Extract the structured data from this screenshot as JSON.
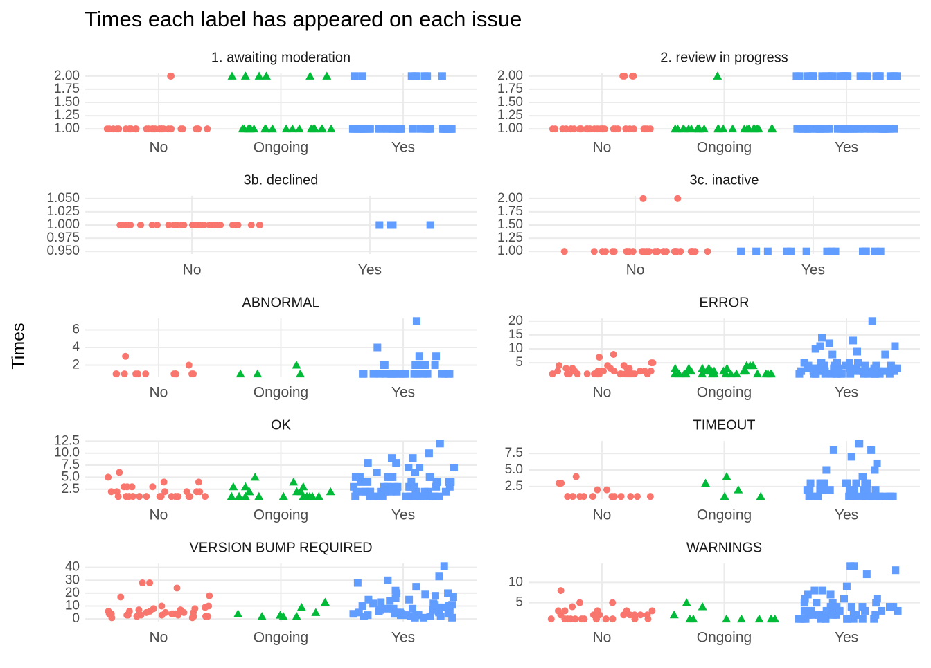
{
  "title": "Times each label has appeared on each issue",
  "y_label": "Times",
  "chart_data": [
    {
      "type": "scatter",
      "title": "1. awaiting moderation",
      "categories": [
        "No",
        "Ongoing",
        "Yes"
      ],
      "colors": [
        "#F8766D",
        "#00BA38",
        "#619CFF"
      ],
      "shapes": [
        "circle",
        "triangle",
        "square"
      ],
      "grid": true,
      "ylim": [
        0.95,
        2.05
      ],
      "yticks": [
        {
          "value": 1,
          "label": "1.00"
        },
        {
          "value": 1.25,
          "label": "1.25"
        },
        {
          "value": 1.5,
          "label": "1.50"
        },
        {
          "value": 1.75,
          "label": "1.75"
        },
        {
          "value": 2,
          "label": "2.00"
        }
      ],
      "values": [
        [
          1,
          1,
          1,
          1,
          1,
          1,
          1,
          1,
          1,
          1,
          1,
          1,
          1,
          1,
          1,
          1,
          1,
          1,
          1,
          1,
          1,
          1,
          1,
          1,
          1,
          1,
          1,
          1,
          1,
          1,
          2,
          2
        ],
        [
          1,
          1,
          1,
          1,
          1,
          1,
          1,
          1,
          1,
          1,
          1,
          1,
          1,
          1,
          1,
          1,
          1,
          1,
          1,
          1,
          2,
          2,
          2,
          2,
          2,
          2
        ],
        [
          1,
          1,
          1,
          1,
          1,
          1,
          1,
          1,
          1,
          1,
          1,
          1,
          1,
          1,
          1,
          1,
          1,
          1,
          1,
          1,
          1,
          1,
          1,
          1,
          1,
          1,
          1,
          1,
          1,
          1,
          1,
          1,
          1,
          1,
          1,
          1,
          1,
          1,
          1,
          1,
          2,
          2,
          2,
          2,
          2,
          2,
          2,
          2
        ]
      ]
    },
    {
      "type": "scatter",
      "title": "2. review in progress",
      "categories": [
        "No",
        "Ongoing",
        "Yes"
      ],
      "colors": [
        "#F8766D",
        "#00BA38",
        "#619CFF"
      ],
      "shapes": [
        "circle",
        "triangle",
        "square"
      ],
      "grid": true,
      "ylim": [
        0.95,
        2.05
      ],
      "yticks": [
        {
          "value": 1,
          "label": "1.00"
        },
        {
          "value": 1.25,
          "label": "1.25"
        },
        {
          "value": 1.5,
          "label": "1.50"
        },
        {
          "value": 1.75,
          "label": "1.75"
        },
        {
          "value": 2,
          "label": "2.00"
        }
      ],
      "values": [
        [
          1,
          1,
          1,
          1,
          1,
          1,
          1,
          1,
          1,
          1,
          1,
          1,
          1,
          1,
          1,
          1,
          1,
          1,
          1,
          1,
          1,
          1,
          1,
          1,
          1,
          1,
          1,
          1,
          1,
          1,
          2,
          2,
          2,
          2
        ],
        [
          1,
          1,
          1,
          1,
          1,
          1,
          1,
          1,
          1,
          1,
          1,
          1,
          1,
          1,
          1,
          1,
          1,
          1,
          1,
          1,
          1,
          1,
          1,
          1,
          1,
          2
        ],
        [
          1,
          1,
          1,
          1,
          1,
          1,
          1,
          1,
          1,
          1,
          1,
          1,
          1,
          1,
          1,
          1,
          1,
          1,
          1,
          1,
          1,
          1,
          1,
          1,
          1,
          1,
          1,
          1,
          1,
          1,
          1,
          1,
          1,
          1,
          1,
          1,
          1,
          1,
          1,
          1,
          2,
          2,
          2,
          2,
          2,
          2,
          2,
          2,
          2,
          2,
          2,
          2,
          2,
          2,
          2,
          2,
          2,
          2,
          2,
          2,
          2,
          2,
          2,
          2,
          2,
          2,
          2,
          2,
          2,
          2
        ]
      ]
    },
    {
      "type": "scatter",
      "title": "3b. declined",
      "categories": [
        "No",
        "Yes"
      ],
      "colors": [
        "#F8766D",
        "#619CFF"
      ],
      "shapes": [
        "circle",
        "square"
      ],
      "grid": true,
      "ylim": [
        0.945,
        1.055
      ],
      "yticks": [
        {
          "value": 0.95,
          "label": "0.950"
        },
        {
          "value": 0.975,
          "label": "0.975"
        },
        {
          "value": 1,
          "label": "1.000"
        },
        {
          "value": 1.025,
          "label": "1.025"
        },
        {
          "value": 1.05,
          "label": "1.050"
        }
      ],
      "values": [
        [
          1,
          1,
          1,
          1,
          1,
          1,
          1,
          1,
          1,
          1,
          1,
          1,
          1,
          1,
          1,
          1,
          1,
          1,
          1,
          1,
          1,
          1,
          1,
          1,
          1,
          1,
          1,
          1,
          1,
          1,
          1,
          1,
          1,
          1,
          1,
          1,
          1,
          1,
          1,
          1
        ],
        [
          1,
          1,
          1,
          1
        ]
      ]
    },
    {
      "type": "scatter",
      "title": "3c. inactive",
      "categories": [
        "No",
        "Yes"
      ],
      "colors": [
        "#F8766D",
        "#619CFF"
      ],
      "shapes": [
        "circle",
        "square"
      ],
      "grid": true,
      "ylim": [
        0.95,
        2.05
      ],
      "yticks": [
        {
          "value": 1,
          "label": "1.00"
        },
        {
          "value": 1.25,
          "label": "1.25"
        },
        {
          "value": 1.5,
          "label": "1.50"
        },
        {
          "value": 1.75,
          "label": "1.75"
        },
        {
          "value": 2,
          "label": "2.00"
        }
      ],
      "values": [
        [
          1,
          1,
          1,
          1,
          1,
          1,
          1,
          1,
          1,
          1,
          1,
          1,
          1,
          1,
          1,
          1,
          1,
          1,
          1,
          1,
          1,
          1,
          1,
          1,
          1,
          1,
          1,
          1,
          1,
          1,
          2,
          2
        ],
        [
          1,
          1,
          1,
          1,
          1,
          1,
          1,
          1,
          1,
          1,
          1,
          1,
          1,
          1,
          1
        ]
      ]
    },
    {
      "type": "scatter",
      "title": "ABNORMAL",
      "categories": [
        "No",
        "Ongoing",
        "Yes"
      ],
      "colors": [
        "#F8766D",
        "#00BA38",
        "#619CFF"
      ],
      "shapes": [
        "circle",
        "triangle",
        "square"
      ],
      "grid": true,
      "ylim": [
        0.7,
        7.3
      ],
      "yticks": [
        2,
        4,
        6
      ],
      "values": [
        [
          1,
          1,
          1,
          1,
          1,
          3,
          1,
          1,
          2,
          1,
          1,
          1,
          1
        ],
        [
          1,
          2,
          1,
          1
        ],
        [
          1,
          1,
          1,
          1,
          1,
          1,
          1,
          1,
          1,
          1,
          1,
          1,
          1,
          1,
          1,
          1,
          1,
          1,
          1,
          1,
          2,
          2,
          2,
          2,
          2,
          2,
          2,
          2,
          3,
          3,
          4,
          7
        ]
      ]
    },
    {
      "type": "scatter",
      "title": "ERROR",
      "categories": [
        "No",
        "Ongoing",
        "Yes"
      ],
      "colors": [
        "#F8766D",
        "#00BA38",
        "#619CFF"
      ],
      "shapes": [
        "circle",
        "triangle",
        "square"
      ],
      "grid": true,
      "ylim": [
        0.05,
        20.95
      ],
      "yticks": [
        5,
        10,
        15,
        20
      ],
      "values": [
        [
          1,
          2,
          1,
          3,
          1,
          8,
          2,
          1,
          4,
          1,
          2,
          5,
          1,
          1,
          3,
          2,
          1,
          7,
          1,
          2,
          1,
          3,
          1,
          4,
          2,
          1,
          1,
          5,
          2,
          1,
          3,
          1,
          2,
          4,
          1,
          1,
          2,
          1,
          3,
          1
        ],
        [
          1,
          2,
          1,
          1,
          3,
          2,
          1,
          4,
          1,
          2,
          1,
          3,
          1,
          1,
          2,
          4,
          3,
          1,
          2,
          1,
          1,
          4,
          2,
          1,
          3,
          1,
          2,
          1,
          1,
          3
        ],
        [
          1,
          2,
          3,
          4,
          5,
          1,
          2,
          3,
          1,
          4,
          2,
          1,
          5,
          3,
          2,
          1,
          4,
          1,
          3,
          2,
          5,
          1,
          2,
          3,
          4,
          1,
          2,
          1,
          3,
          5,
          2,
          1,
          4,
          3,
          1,
          2,
          5,
          1,
          3,
          2,
          4,
          1,
          2,
          3,
          1,
          5,
          2,
          4,
          1,
          3,
          2,
          1,
          4,
          3,
          5,
          1,
          2,
          1,
          3,
          2,
          8,
          9,
          10,
          11,
          11,
          12,
          13,
          14,
          20,
          8
        ]
      ]
    },
    {
      "type": "scatter",
      "title": "OK",
      "categories": [
        "No",
        "Ongoing",
        "Yes"
      ],
      "colors": [
        "#F8766D",
        "#00BA38",
        "#619CFF"
      ],
      "shapes": [
        "circle",
        "triangle",
        "square"
      ],
      "grid": true,
      "ylim": [
        0.45,
        12.55
      ],
      "yticks": [
        {
          "value": 2.5,
          "label": "2.5"
        },
        {
          "value": 5,
          "label": "5.0"
        },
        {
          "value": 7.5,
          "label": "7.5"
        },
        {
          "value": 10,
          "label": "10.0"
        },
        {
          "value": 12.5,
          "label": "12.5"
        }
      ],
      "values": [
        [
          1,
          5,
          4,
          2,
          1,
          3,
          1,
          2,
          6,
          1,
          1,
          3,
          4,
          2,
          1,
          1,
          2,
          1,
          3,
          1,
          1,
          2,
          1,
          1,
          3,
          1,
          2,
          1
        ],
        [
          1,
          1,
          2,
          1,
          3,
          1,
          1,
          2,
          5,
          4,
          1,
          2,
          1,
          1,
          3,
          1,
          2,
          1,
          3,
          2
        ],
        [
          1,
          2,
          3,
          4,
          5,
          1,
          2,
          3,
          1,
          4,
          2,
          1,
          5,
          3,
          2,
          1,
          4,
          1,
          3,
          2,
          5,
          1,
          2,
          3,
          4,
          1,
          2,
          1,
          3,
          5,
          2,
          1,
          4,
          3,
          1,
          2,
          5,
          1,
          3,
          2,
          4,
          1,
          2,
          3,
          1,
          5,
          2,
          4,
          1,
          3,
          2,
          1,
          4,
          3,
          5,
          1,
          2,
          6,
          7,
          8,
          9,
          9,
          8,
          6,
          7,
          10,
          12,
          7
        ]
      ]
    },
    {
      "type": "scatter",
      "title": "TIMEOUT",
      "categories": [
        "No",
        "Ongoing",
        "Yes"
      ],
      "colors": [
        "#F8766D",
        "#00BA38",
        "#619CFF"
      ],
      "shapes": [
        "circle",
        "triangle",
        "square"
      ],
      "grid": true,
      "ylim": [
        0.6,
        9.4
      ],
      "yticks": [
        {
          "value": 2.5,
          "label": "2.5"
        },
        {
          "value": 5,
          "label": "5.0"
        },
        {
          "value": 7.5,
          "label": "7.5"
        }
      ],
      "values": [
        [
          1,
          3,
          1,
          1,
          1,
          3,
          1,
          1,
          1,
          2,
          4,
          1,
          1,
          1,
          2,
          1,
          1
        ],
        [
          1,
          2,
          4,
          1,
          3
        ],
        [
          1,
          2,
          3,
          1,
          2,
          1,
          3,
          2,
          1,
          1,
          3,
          2,
          1,
          2,
          1,
          3,
          1,
          2,
          1,
          1,
          3,
          2,
          1,
          2,
          3,
          1,
          1,
          2,
          3,
          1,
          2,
          1,
          1,
          3,
          2,
          4,
          1,
          2,
          5,
          6,
          7,
          8,
          9,
          9,
          8,
          5,
          4,
          3
        ]
      ]
    },
    {
      "type": "scatter",
      "title": "VERSION BUMP REQUIRED",
      "categories": [
        "No",
        "Ongoing",
        "Yes"
      ],
      "colors": [
        "#F8766D",
        "#00BA38",
        "#619CFF"
      ],
      "shapes": [
        "circle",
        "triangle",
        "square"
      ],
      "grid": true,
      "ylim": [
        -2.05,
        43.05
      ],
      "yticks": [
        0,
        10,
        20,
        30,
        40
      ],
      "values": [
        [
          3,
          5,
          2,
          8,
          17,
          28,
          28,
          4,
          6,
          10,
          3,
          2,
          5,
          7,
          1,
          4,
          18,
          3,
          9,
          10,
          6,
          2,
          4,
          24,
          3,
          5,
          8,
          1,
          6,
          4,
          2,
          3,
          5,
          7,
          4
        ],
        [
          2,
          2,
          3,
          9,
          13,
          5,
          4,
          2
        ],
        [
          2,
          5,
          8,
          12,
          20,
          3,
          7,
          15,
          1,
          4,
          10,
          18,
          6,
          2,
          9,
          14,
          3,
          5,
          11,
          19,
          25,
          28,
          30,
          33,
          41,
          7,
          4,
          2,
          16,
          8,
          5,
          13,
          1,
          6,
          3,
          10,
          17,
          4,
          2,
          9,
          20,
          12,
          5,
          3,
          1,
          7,
          15,
          6,
          22,
          8,
          3,
          11,
          4
        ]
      ]
    },
    {
      "type": "scatter",
      "title": "WARNINGS",
      "categories": [
        "No",
        "Ongoing",
        "Yes"
      ],
      "colors": [
        "#F8766D",
        "#00BA38",
        "#619CFF"
      ],
      "shapes": [
        "circle",
        "triangle",
        "square"
      ],
      "grid": true,
      "ylim": [
        0.35,
        14.65
      ],
      "yticks": [
        5,
        10
      ],
      "values": [
        [
          1,
          2,
          1,
          3,
          1,
          5,
          8,
          2,
          1,
          4,
          1,
          2,
          3,
          1,
          1,
          2,
          5,
          1,
          3,
          2,
          1,
          1,
          2,
          3,
          1,
          2,
          1,
          3,
          1,
          2
        ],
        [
          1,
          5,
          4,
          1,
          1,
          1,
          2,
          1,
          1,
          1
        ],
        [
          1,
          2,
          3,
          4,
          5,
          6,
          1,
          2,
          3,
          1,
          4,
          2,
          1,
          5,
          3,
          2,
          1,
          4,
          1,
          3,
          2,
          5,
          6,
          1,
          2,
          3,
          4,
          1,
          2,
          1,
          3,
          7,
          2,
          1,
          4,
          3,
          1,
          2,
          5,
          1,
          3,
          2,
          4,
          8,
          9,
          12,
          13,
          14,
          14,
          8,
          6,
          7
        ]
      ]
    }
  ]
}
